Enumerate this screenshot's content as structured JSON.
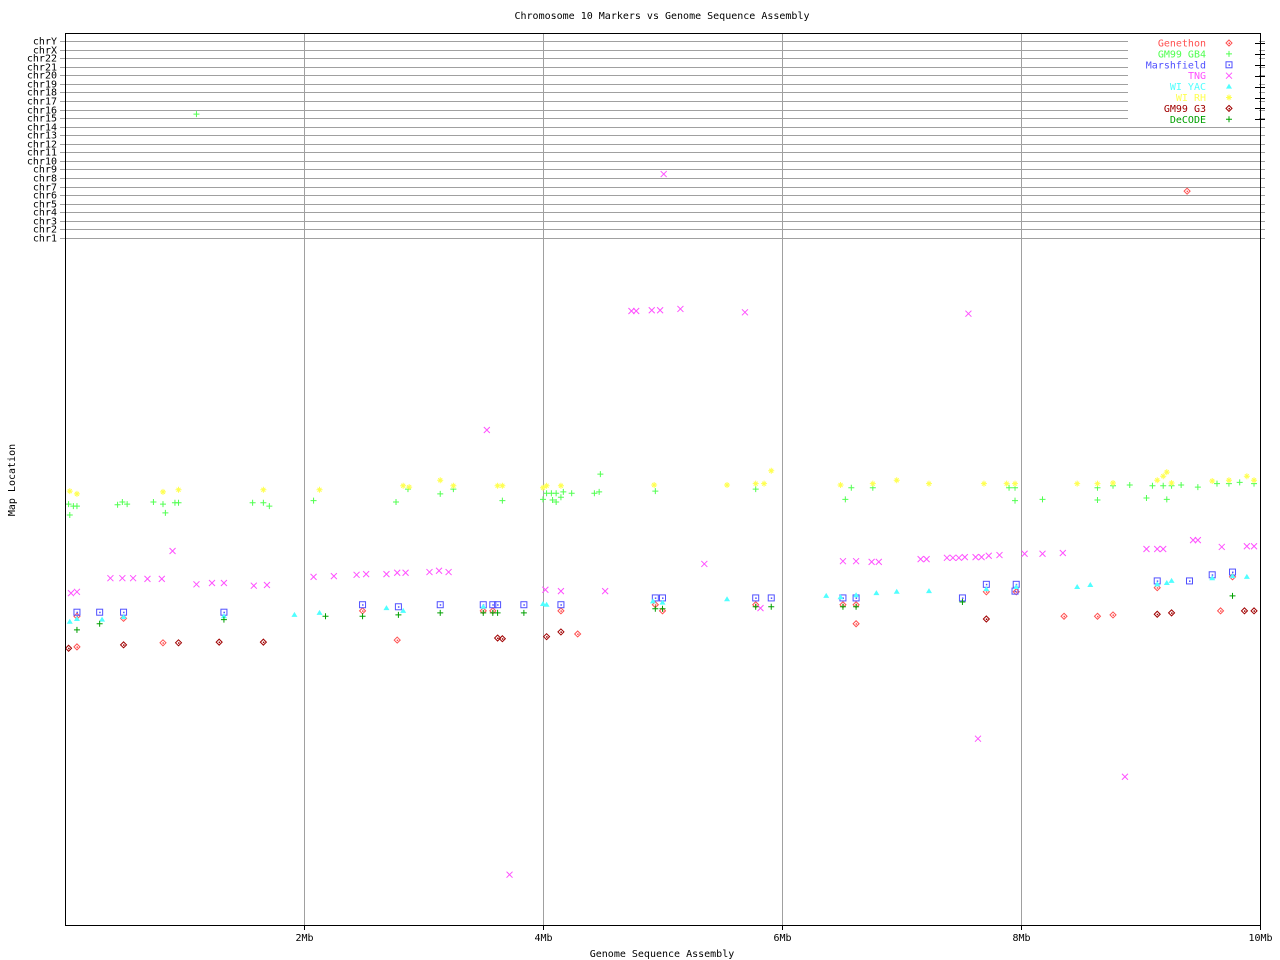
{
  "chart_data": {
    "type": "scatter",
    "title": "Chromosome 10 Markers vs Genome Sequence Assembly",
    "xlabel": "Genome Sequence Assembly",
    "ylabel": "Map Location",
    "x_unit": "Mb",
    "xlim": [
      0,
      10
    ],
    "x_ticks": [
      {
        "value": 2,
        "label": "2Mb"
      },
      {
        "value": 4,
        "label": "4Mb"
      },
      {
        "value": 6,
        "label": "6Mb"
      },
      {
        "value": 8,
        "label": "8Mb"
      },
      {
        "value": 10,
        "label": "10Mb"
      }
    ],
    "y_chromosome_labels": [
      "chrY",
      "chrX",
      "chr22",
      "chr21",
      "chr20",
      "chr19",
      "chr18",
      "chr17",
      "chr16",
      "chr15",
      "chr14",
      "chr13",
      "chr12",
      "chr11",
      "chr10",
      "chr9",
      "chr8",
      "chr7",
      "chr6",
      "chr5",
      "chr4",
      "chr3",
      "chr2",
      "chr1"
    ],
    "y_map_note": "lower region y = relative chromosome 10 map position (0 = top, 1 = bottom), unlabeled axis",
    "grid": {
      "vertical": true,
      "chromosome_lines": true
    },
    "legend_position": "top-right",
    "series": [
      {
        "name": "Genethon",
        "color": "#ff5050",
        "marker": "diamond",
        "points": [
          [
            0.1,
            0.546
          ],
          [
            0.49,
            0.549
          ],
          [
            2.49,
            0.538
          ],
          [
            3.5,
            0.538
          ],
          [
            3.58,
            0.538
          ],
          [
            4.15,
            0.538
          ],
          [
            4.94,
            0.529
          ],
          [
            5.0,
            0.538
          ],
          [
            5.78,
            0.529
          ],
          [
            6.51,
            0.529
          ],
          [
            6.62,
            0.529
          ],
          [
            7.71,
            0.51
          ],
          [
            7.96,
            0.51
          ],
          [
            9.14,
            0.504
          ],
          [
            9.77,
            0.488
          ],
          [
            2.78,
            0.581
          ],
          [
            4.29,
            0.572
          ],
          [
            6.62,
            0.557
          ],
          [
            8.36,
            0.546
          ],
          [
            8.64,
            0.546
          ],
          [
            8.77,
            0.544
          ],
          [
            9.67,
            0.538
          ],
          [
            0.1,
            0.591
          ],
          [
            0.82,
            0.585
          ]
        ],
        "chr_points": [
          [
            9.39,
            "chr6"
          ]
        ]
      },
      {
        "name": "GM99 GB4",
        "color": "#50ff50",
        "marker": "plus",
        "points": [
          [
            0.03,
            0.381
          ],
          [
            0.07,
            0.384
          ],
          [
            0.1,
            0.384
          ],
          [
            0.04,
            0.397
          ],
          [
            0.44,
            0.382
          ],
          [
            0.48,
            0.378
          ],
          [
            0.52,
            0.381
          ],
          [
            0.74,
            0.378
          ],
          [
            0.82,
            0.381
          ],
          [
            0.84,
            0.394
          ],
          [
            0.92,
            0.379
          ],
          [
            0.95,
            0.379
          ],
          [
            1.57,
            0.379
          ],
          [
            1.66,
            0.379
          ],
          [
            1.71,
            0.384
          ],
          [
            2.08,
            0.376
          ],
          [
            2.77,
            0.378
          ],
          [
            2.87,
            0.359
          ],
          [
            3.14,
            0.366
          ],
          [
            3.25,
            0.359
          ],
          [
            3.66,
            0.376
          ],
          [
            4.0,
            0.374
          ],
          [
            4.03,
            0.365
          ],
          [
            4.07,
            0.365
          ],
          [
            4.11,
            0.365
          ],
          [
            4.17,
            0.363
          ],
          [
            4.24,
            0.365
          ],
          [
            4.08,
            0.375
          ],
          [
            4.11,
            0.378
          ],
          [
            4.15,
            0.371
          ],
          [
            4.43,
            0.365
          ],
          [
            4.47,
            0.363
          ],
          [
            4.48,
            0.337
          ],
          [
            4.94,
            0.362
          ],
          [
            5.78,
            0.359
          ],
          [
            6.53,
            0.374
          ],
          [
            6.58,
            0.357
          ],
          [
            6.76,
            0.357
          ],
          [
            7.9,
            0.357
          ],
          [
            7.95,
            0.357
          ],
          [
            7.95,
            0.376
          ],
          [
            8.18,
            0.374
          ],
          [
            8.64,
            0.357
          ],
          [
            8.64,
            0.375
          ],
          [
            8.77,
            0.354
          ],
          [
            8.91,
            0.353
          ],
          [
            9.05,
            0.372
          ],
          [
            9.1,
            0.354
          ],
          [
            9.19,
            0.354
          ],
          [
            9.22,
            0.374
          ],
          [
            9.26,
            0.354
          ],
          [
            9.34,
            0.353
          ],
          [
            9.48,
            0.356
          ],
          [
            9.64,
            0.351
          ],
          [
            9.74,
            0.351
          ],
          [
            9.83,
            0.349
          ],
          [
            9.95,
            0.351
          ]
        ],
        "chr_points": [
          [
            1.1,
            "chr15"
          ]
        ]
      },
      {
        "name": "Marshfield",
        "color": "#5050ff",
        "marker": "square",
        "points": [
          [
            0.1,
            0.54
          ],
          [
            0.29,
            0.54
          ],
          [
            0.49,
            0.54
          ],
          [
            1.33,
            0.54
          ],
          [
            2.49,
            0.529
          ],
          [
            2.79,
            0.532
          ],
          [
            3.14,
            0.529
          ],
          [
            3.5,
            0.529
          ],
          [
            3.58,
            0.529
          ],
          [
            3.62,
            0.529
          ],
          [
            3.84,
            0.529
          ],
          [
            4.15,
            0.529
          ],
          [
            4.94,
            0.519
          ],
          [
            5.0,
            0.519
          ],
          [
            5.78,
            0.519
          ],
          [
            5.91,
            0.519
          ],
          [
            6.51,
            0.519
          ],
          [
            6.62,
            0.519
          ],
          [
            7.51,
            0.519
          ],
          [
            7.71,
            0.499
          ],
          [
            7.96,
            0.499
          ],
          [
            7.95,
            0.509
          ],
          [
            9.14,
            0.494
          ],
          [
            9.41,
            0.494
          ],
          [
            9.6,
            0.485
          ],
          [
            9.77,
            0.481
          ]
        ],
        "chr_points": []
      },
      {
        "name": "TNG",
        "color": "#ff50ff",
        "marker": "cross",
        "points": [
          [
            0.05,
            0.512
          ],
          [
            0.1,
            0.51
          ],
          [
            0.38,
            0.49
          ],
          [
            0.48,
            0.49
          ],
          [
            0.57,
            0.49
          ],
          [
            0.69,
            0.491
          ],
          [
            0.81,
            0.491
          ],
          [
            0.9,
            0.45
          ],
          [
            1.1,
            0.499
          ],
          [
            1.23,
            0.497
          ],
          [
            1.33,
            0.497
          ],
          [
            1.58,
            0.501
          ],
          [
            1.69,
            0.5
          ],
          [
            2.08,
            0.488
          ],
          [
            2.25,
            0.487
          ],
          [
            2.44,
            0.485
          ],
          [
            2.52,
            0.484
          ],
          [
            2.69,
            0.484
          ],
          [
            2.78,
            0.482
          ],
          [
            2.85,
            0.482
          ],
          [
            3.05,
            0.481
          ],
          [
            3.13,
            0.479
          ],
          [
            3.21,
            0.481
          ],
          [
            3.53,
            0.272
          ],
          [
            3.72,
            0.926
          ],
          [
            4.02,
            0.507
          ],
          [
            4.15,
            0.509
          ],
          [
            4.52,
            0.509
          ],
          [
            4.74,
            0.097
          ],
          [
            4.78,
            0.097
          ],
          [
            4.91,
            0.096
          ],
          [
            4.98,
            0.096
          ],
          [
            5.15,
            0.094
          ],
          [
            5.35,
            0.469
          ],
          [
            5.69,
            0.099
          ],
          [
            5.82,
            0.534
          ],
          [
            6.51,
            0.465
          ],
          [
            6.62,
            0.465
          ],
          [
            6.75,
            0.466
          ],
          [
            6.81,
            0.466
          ],
          [
            7.16,
            0.462
          ],
          [
            7.21,
            0.462
          ],
          [
            7.38,
            0.46
          ],
          [
            7.43,
            0.46
          ],
          [
            7.48,
            0.46
          ],
          [
            7.53,
            0.459
          ],
          [
            7.56,
            0.101
          ],
          [
            7.62,
            0.459
          ],
          [
            7.64,
            0.726
          ],
          [
            7.67,
            0.459
          ],
          [
            7.73,
            0.457
          ],
          [
            7.82,
            0.456
          ],
          [
            8.03,
            0.454
          ],
          [
            8.18,
            0.454
          ],
          [
            8.35,
            0.453
          ],
          [
            8.87,
            0.782
          ],
          [
            9.05,
            0.447
          ],
          [
            9.14,
            0.447
          ],
          [
            9.19,
            0.447
          ],
          [
            9.44,
            0.434
          ],
          [
            9.48,
            0.434
          ],
          [
            9.68,
            0.444
          ],
          [
            9.89,
            0.443
          ],
          [
            9.95,
            0.443
          ]
        ],
        "chr_points": [
          [
            5.01,
            "chr8"
          ],
          [
            9.77,
            "chr18"
          ]
        ]
      },
      {
        "name": "WI YAC",
        "color": "#50ffff",
        "marker": "triangle",
        "points": [
          [
            0.04,
            0.554
          ],
          [
            0.1,
            0.55
          ],
          [
            0.31,
            0.551
          ],
          [
            0.49,
            0.547
          ],
          [
            1.33,
            0.546
          ],
          [
            1.92,
            0.544
          ],
          [
            2.13,
            0.541
          ],
          [
            2.69,
            0.534
          ],
          [
            2.83,
            0.538
          ],
          [
            3.5,
            0.532
          ],
          [
            4.0,
            0.528
          ],
          [
            4.03,
            0.529
          ],
          [
            4.92,
            0.524
          ],
          [
            5.0,
            0.526
          ],
          [
            5.54,
            0.521
          ],
          [
            6.37,
            0.516
          ],
          [
            6.49,
            0.518
          ],
          [
            6.62,
            0.515
          ],
          [
            6.79,
            0.512
          ],
          [
            6.96,
            0.51
          ],
          [
            7.23,
            0.509
          ],
          [
            7.71,
            0.506
          ],
          [
            7.96,
            0.503
          ],
          [
            8.47,
            0.503
          ],
          [
            8.58,
            0.5
          ],
          [
            9.14,
            0.499
          ],
          [
            9.22,
            0.497
          ],
          [
            9.26,
            0.494
          ],
          [
            9.6,
            0.49
          ],
          [
            9.77,
            0.487
          ],
          [
            9.89,
            0.488
          ]
        ],
        "chr_points": []
      },
      {
        "name": "WI RH",
        "color": "#ffff50",
        "marker": "star",
        "points": [
          [
            0.04,
            0.362
          ],
          [
            0.1,
            0.366
          ],
          [
            0.82,
            0.363
          ],
          [
            0.95,
            0.36
          ],
          [
            1.66,
            0.36
          ],
          [
            2.13,
            0.36
          ],
          [
            2.83,
            0.354
          ],
          [
            2.88,
            0.356
          ],
          [
            3.14,
            0.346
          ],
          [
            3.25,
            0.354
          ],
          [
            3.62,
            0.354
          ],
          [
            3.66,
            0.354
          ],
          [
            4.0,
            0.357
          ],
          [
            4.03,
            0.354
          ],
          [
            4.15,
            0.354
          ],
          [
            4.93,
            0.353
          ],
          [
            5.54,
            0.353
          ],
          [
            5.78,
            0.351
          ],
          [
            5.85,
            0.351
          ],
          [
            5.91,
            0.332
          ],
          [
            6.49,
            0.353
          ],
          [
            6.76,
            0.351
          ],
          [
            6.96,
            0.346
          ],
          [
            7.23,
            0.351
          ],
          [
            7.69,
            0.351
          ],
          [
            7.88,
            0.351
          ],
          [
            7.95,
            0.351
          ],
          [
            8.47,
            0.351
          ],
          [
            8.64,
            0.351
          ],
          [
            8.77,
            0.35
          ],
          [
            9.14,
            0.346
          ],
          [
            9.19,
            0.34
          ],
          [
            9.22,
            0.334
          ],
          [
            9.26,
            0.35
          ],
          [
            9.6,
            0.347
          ],
          [
            9.74,
            0.346
          ],
          [
            9.89,
            0.34
          ],
          [
            9.95,
            0.346
          ]
        ],
        "chr_points": []
      },
      {
        "name": "GM99 G3",
        "color": "#a00000",
        "marker": "diamond",
        "points": [
          [
            0.03,
            0.593
          ],
          [
            0.49,
            0.588
          ],
          [
            0.95,
            0.585
          ],
          [
            1.29,
            0.584
          ],
          [
            1.66,
            0.584
          ],
          [
            3.62,
            0.578
          ],
          [
            3.66,
            0.579
          ],
          [
            4.03,
            0.576
          ],
          [
            4.15,
            0.569
          ],
          [
            7.71,
            0.55
          ],
          [
            9.14,
            0.543
          ],
          [
            9.26,
            0.541
          ],
          [
            9.87,
            0.538
          ],
          [
            9.95,
            0.538
          ]
        ],
        "chr_points": []
      },
      {
        "name": "DeCODE",
        "color": "#00a000",
        "marker": "plus",
        "points": [
          [
            0.1,
            0.566
          ],
          [
            0.29,
            0.557
          ],
          [
            1.33,
            0.551
          ],
          [
            2.18,
            0.546
          ],
          [
            2.49,
            0.546
          ],
          [
            2.79,
            0.544
          ],
          [
            3.14,
            0.541
          ],
          [
            3.5,
            0.541
          ],
          [
            3.58,
            0.541
          ],
          [
            3.62,
            0.541
          ],
          [
            3.84,
            0.541
          ],
          [
            4.94,
            0.535
          ],
          [
            5.0,
            0.535
          ],
          [
            5.78,
            0.532
          ],
          [
            5.91,
            0.532
          ],
          [
            6.51,
            0.532
          ],
          [
            6.62,
            0.532
          ],
          [
            7.51,
            0.525
          ],
          [
            9.77,
            0.516
          ]
        ],
        "chr_points": []
      }
    ]
  }
}
